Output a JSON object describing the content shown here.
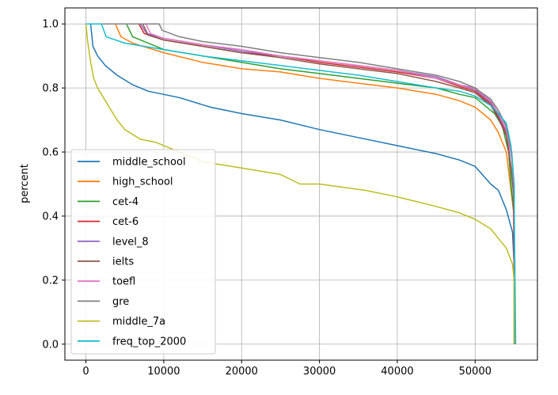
{
  "chart_data": {
    "type": "line",
    "title": "",
    "xlabel": "",
    "ylabel": "percent",
    "xlim": [
      -2700,
      58000
    ],
    "ylim": [
      -0.05,
      1.05
    ],
    "xticks": [
      0,
      10000,
      20000,
      30000,
      40000,
      50000
    ],
    "xtick_labels": [
      "0",
      "10000",
      "20000",
      "30000",
      "40000",
      "50000"
    ],
    "yticks": [
      0.0,
      0.2,
      0.4,
      0.6,
      0.8,
      1.0
    ],
    "ytick_labels": [
      "0.0",
      "0.2",
      "0.4",
      "0.6",
      "0.8",
      "1.0"
    ],
    "grid": true,
    "legend_position": "lower-left",
    "series": [
      {
        "name": "middle_school",
        "color": "#1f77b4",
        "points": [
          [
            0,
            1.0
          ],
          [
            600,
            1.0
          ],
          [
            900,
            0.93
          ],
          [
            1500,
            0.9
          ],
          [
            2500,
            0.87
          ],
          [
            4000,
            0.84
          ],
          [
            6000,
            0.81
          ],
          [
            8000,
            0.79
          ],
          [
            12000,
            0.77
          ],
          [
            16000,
            0.74
          ],
          [
            20000,
            0.72
          ],
          [
            25000,
            0.7
          ],
          [
            30000,
            0.67
          ],
          [
            35000,
            0.645
          ],
          [
            40000,
            0.62
          ],
          [
            45000,
            0.595
          ],
          [
            48000,
            0.575
          ],
          [
            50000,
            0.555
          ],
          [
            52000,
            0.5
          ],
          [
            53000,
            0.48
          ],
          [
            54000,
            0.42
          ],
          [
            54800,
            0.35
          ],
          [
            55000,
            0.25
          ],
          [
            55000,
            0.0
          ]
        ]
      },
      {
        "name": "high_school",
        "color": "#ff7f0e",
        "points": [
          [
            0,
            1.0
          ],
          [
            3800,
            1.0
          ],
          [
            4500,
            0.96
          ],
          [
            6000,
            0.94
          ],
          [
            10000,
            0.91
          ],
          [
            15000,
            0.88
          ],
          [
            20000,
            0.86
          ],
          [
            25000,
            0.85
          ],
          [
            30000,
            0.83
          ],
          [
            35000,
            0.815
          ],
          [
            40000,
            0.8
          ],
          [
            45000,
            0.78
          ],
          [
            48000,
            0.76
          ],
          [
            50000,
            0.74
          ],
          [
            51000,
            0.72
          ],
          [
            52000,
            0.7
          ],
          [
            53000,
            0.66
          ],
          [
            54000,
            0.6
          ],
          [
            54500,
            0.5
          ],
          [
            55000,
            0.4
          ],
          [
            55100,
            0.0
          ]
        ]
      },
      {
        "name": "cet-4",
        "color": "#2ca02c",
        "points": [
          [
            0,
            1.0
          ],
          [
            5200,
            1.0
          ],
          [
            6000,
            0.96
          ],
          [
            10000,
            0.92
          ],
          [
            15000,
            0.9
          ],
          [
            20000,
            0.88
          ],
          [
            25000,
            0.86
          ],
          [
            30000,
            0.845
          ],
          [
            35000,
            0.83
          ],
          [
            40000,
            0.815
          ],
          [
            45000,
            0.8
          ],
          [
            48000,
            0.78
          ],
          [
            50000,
            0.77
          ],
          [
            51500,
            0.74
          ],
          [
            52500,
            0.72
          ],
          [
            53500,
            0.68
          ],
          [
            54300,
            0.6
          ],
          [
            54600,
            0.5
          ],
          [
            55000,
            0.4
          ],
          [
            55100,
            0.0
          ]
        ]
      },
      {
        "name": "cet-6",
        "color": "#d62728",
        "points": [
          [
            0,
            1.0
          ],
          [
            6800,
            1.0
          ],
          [
            7500,
            0.97
          ],
          [
            10000,
            0.95
          ],
          [
            15000,
            0.93
          ],
          [
            20000,
            0.91
          ],
          [
            25000,
            0.9
          ],
          [
            30000,
            0.88
          ],
          [
            35000,
            0.865
          ],
          [
            40000,
            0.85
          ],
          [
            45000,
            0.83
          ],
          [
            48000,
            0.805
          ],
          [
            50000,
            0.79
          ],
          [
            52000,
            0.75
          ],
          [
            53000,
            0.71
          ],
          [
            54000,
            0.66
          ],
          [
            54500,
            0.57
          ],
          [
            54900,
            0.5
          ],
          [
            55100,
            0.0
          ]
        ]
      },
      {
        "name": "level_8",
        "color": "#9467bd",
        "points": [
          [
            0,
            1.0
          ],
          [
            7000,
            1.0
          ],
          [
            7800,
            0.97
          ],
          [
            10000,
            0.955
          ],
          [
            15000,
            0.935
          ],
          [
            20000,
            0.915
          ],
          [
            25000,
            0.9
          ],
          [
            30000,
            0.885
          ],
          [
            35000,
            0.87
          ],
          [
            40000,
            0.855
          ],
          [
            45000,
            0.835
          ],
          [
            48000,
            0.81
          ],
          [
            50000,
            0.795
          ],
          [
            52000,
            0.755
          ],
          [
            53000,
            0.715
          ],
          [
            54000,
            0.665
          ],
          [
            54700,
            0.58
          ],
          [
            55000,
            0.5
          ],
          [
            55100,
            0.0
          ]
        ]
      },
      {
        "name": "ielts",
        "color": "#8c564b",
        "points": [
          [
            0,
            1.0
          ],
          [
            7300,
            1.0
          ],
          [
            8000,
            0.965
          ],
          [
            10000,
            0.95
          ],
          [
            15000,
            0.93
          ],
          [
            20000,
            0.91
          ],
          [
            25000,
            0.895
          ],
          [
            30000,
            0.875
          ],
          [
            35000,
            0.86
          ],
          [
            40000,
            0.845
          ],
          [
            45000,
            0.82
          ],
          [
            48000,
            0.8
          ],
          [
            50000,
            0.785
          ],
          [
            52000,
            0.745
          ],
          [
            53000,
            0.705
          ],
          [
            54000,
            0.65
          ],
          [
            54600,
            0.55
          ],
          [
            55000,
            0.45
          ],
          [
            55100,
            0.0
          ]
        ]
      },
      {
        "name": "toefl",
        "color": "#e377c2",
        "points": [
          [
            0,
            1.0
          ],
          [
            7700,
            1.0
          ],
          [
            8300,
            0.97
          ],
          [
            10000,
            0.955
          ],
          [
            15000,
            0.935
          ],
          [
            20000,
            0.92
          ],
          [
            25000,
            0.9
          ],
          [
            30000,
            0.885
          ],
          [
            35000,
            0.87
          ],
          [
            40000,
            0.855
          ],
          [
            45000,
            0.83
          ],
          [
            48000,
            0.81
          ],
          [
            50000,
            0.8
          ],
          [
            52000,
            0.76
          ],
          [
            53000,
            0.72
          ],
          [
            54000,
            0.67
          ],
          [
            54700,
            0.58
          ],
          [
            55000,
            0.48
          ],
          [
            55100,
            0.0
          ]
        ]
      },
      {
        "name": "gre",
        "color": "#7f7f7f",
        "points": [
          [
            0,
            1.0
          ],
          [
            9400,
            1.0
          ],
          [
            9800,
            0.98
          ],
          [
            12000,
            0.96
          ],
          [
            15000,
            0.945
          ],
          [
            20000,
            0.93
          ],
          [
            25000,
            0.91
          ],
          [
            30000,
            0.895
          ],
          [
            35000,
            0.88
          ],
          [
            40000,
            0.86
          ],
          [
            45000,
            0.84
          ],
          [
            48000,
            0.82
          ],
          [
            50000,
            0.8
          ],
          [
            52000,
            0.765
          ],
          [
            53000,
            0.73
          ],
          [
            54000,
            0.68
          ],
          [
            54700,
            0.6
          ],
          [
            55000,
            0.5
          ],
          [
            55100,
            0.0
          ]
        ]
      },
      {
        "name": "middle_7a",
        "color": "#bcbd22",
        "points": [
          [
            0,
            1.0
          ],
          [
            200,
            0.95
          ],
          [
            600,
            0.88
          ],
          [
            1000,
            0.83
          ],
          [
            1500,
            0.8
          ],
          [
            2500,
            0.76
          ],
          [
            4000,
            0.7
          ],
          [
            5000,
            0.67
          ],
          [
            7000,
            0.64
          ],
          [
            9000,
            0.63
          ],
          [
            12000,
            0.6
          ],
          [
            15000,
            0.57
          ],
          [
            20000,
            0.55
          ],
          [
            25000,
            0.53
          ],
          [
            27500,
            0.5
          ],
          [
            30000,
            0.5
          ],
          [
            33000,
            0.49
          ],
          [
            36000,
            0.48
          ],
          [
            40000,
            0.46
          ],
          [
            45000,
            0.43
          ],
          [
            48000,
            0.41
          ],
          [
            50000,
            0.39
          ],
          [
            52000,
            0.36
          ],
          [
            53000,
            0.33
          ],
          [
            54000,
            0.3
          ],
          [
            54800,
            0.25
          ],
          [
            55000,
            0.2
          ],
          [
            55000,
            0.0
          ]
        ]
      },
      {
        "name": "freq_top_2000",
        "color": "#17becf",
        "points": [
          [
            0,
            1.0
          ],
          [
            2000,
            1.0
          ],
          [
            2600,
            0.96
          ],
          [
            5000,
            0.94
          ],
          [
            10000,
            0.92
          ],
          [
            15000,
            0.9
          ],
          [
            20000,
            0.885
          ],
          [
            25000,
            0.87
          ],
          [
            30000,
            0.855
          ],
          [
            35000,
            0.84
          ],
          [
            40000,
            0.82
          ],
          [
            45000,
            0.8
          ],
          [
            48000,
            0.79
          ],
          [
            50000,
            0.775
          ],
          [
            52000,
            0.745
          ],
          [
            53000,
            0.72
          ],
          [
            54000,
            0.69
          ],
          [
            54600,
            0.62
          ],
          [
            55000,
            0.5
          ],
          [
            55200,
            0.0
          ]
        ]
      }
    ]
  }
}
